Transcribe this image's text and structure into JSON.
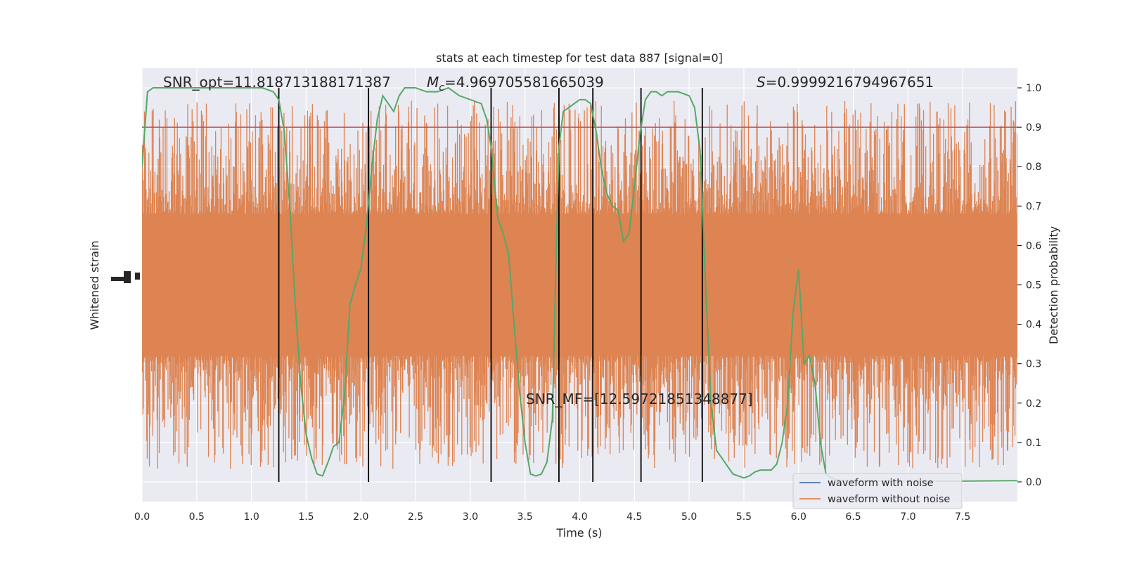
{
  "chart_data": {
    "type": "line",
    "title": "stats at each timestep for test data 887 [signal=0]",
    "xlabel": "Time (s)",
    "ylabel_left": "Whitened strain",
    "ylabel_right": "Detection probability",
    "xlim": [
      0.0,
      8.0
    ],
    "ylim_right": [
      -0.05,
      1.05
    ],
    "grid": true,
    "xticks": [
      "0.0",
      "0.5",
      "1.0",
      "1.5",
      "2.0",
      "2.5",
      "3.0",
      "3.5",
      "4.0",
      "4.5",
      "5.0",
      "5.5",
      "6.0",
      "6.5",
      "7.0",
      "7.5"
    ],
    "yticks_right": [
      "0.0",
      "0.1",
      "0.2",
      "0.3",
      "0.4",
      "0.5",
      "0.6",
      "0.7",
      "0.8",
      "0.9",
      "1.0"
    ],
    "annotations": {
      "snr_opt": "SNR_opt=11.818713188171387",
      "mc_symbol": "M",
      "mc_sub": "c",
      "mc_value": "=4.969705581665039",
      "s_symbol": "S",
      "s_value": "=0.9999216794967651",
      "snr_mf": "SNR_MF=[12.59721851348877]"
    },
    "threshold": 0.9,
    "vertical_lines": [
      1.25,
      2.07,
      3.19,
      3.81,
      4.12,
      4.56,
      5.12
    ],
    "series": [
      {
        "name": "waveform with noise",
        "color": "#4c72b0"
      },
      {
        "name": "waveform without noise",
        "color": "#dd8452",
        "noise_band": {
          "center": 0.5,
          "core_half_width": 0.18,
          "max_half_width": 0.5
        }
      }
    ],
    "detection_probability": {
      "color": "#55a868",
      "x": [
        0.0,
        0.05,
        0.1,
        0.3,
        0.6,
        0.9,
        1.1,
        1.2,
        1.25,
        1.3,
        1.35,
        1.4,
        1.45,
        1.5,
        1.55,
        1.6,
        1.65,
        1.7,
        1.75,
        1.8,
        1.85,
        1.9,
        1.95,
        2.0,
        2.05,
        2.1,
        2.15,
        2.2,
        2.25,
        2.3,
        2.35,
        2.4,
        2.45,
        2.5,
        2.6,
        2.7,
        2.8,
        2.9,
        3.0,
        3.1,
        3.15,
        3.19,
        3.25,
        3.3,
        3.35,
        3.4,
        3.45,
        3.5,
        3.55,
        3.6,
        3.65,
        3.7,
        3.75,
        3.78,
        3.81,
        3.85,
        3.9,
        3.95,
        4.0,
        4.05,
        4.1,
        4.15,
        4.2,
        4.25,
        4.3,
        4.35,
        4.4,
        4.45,
        4.5,
        4.55,
        4.6,
        4.65,
        4.7,
        4.75,
        4.8,
        4.9,
        5.0,
        5.05,
        5.1,
        5.15,
        5.2,
        5.25,
        5.3,
        5.35,
        5.4,
        5.45,
        5.5,
        5.55,
        5.6,
        5.65,
        5.7,
        5.75,
        5.8,
        5.85,
        5.9,
        5.95,
        6.0,
        6.05,
        6.1,
        6.15,
        6.2,
        6.25,
        6.3,
        6.35,
        6.4,
        6.45,
        6.5,
        6.55,
        6.6,
        7.0,
        7.5,
        8.0
      ],
      "y": [
        0.8,
        0.99,
        1.0,
        1.0,
        1.0,
        1.0,
        1.0,
        0.99,
        0.97,
        0.89,
        0.7,
        0.45,
        0.25,
        0.12,
        0.06,
        0.02,
        0.015,
        0.05,
        0.09,
        0.1,
        0.22,
        0.45,
        0.5,
        0.54,
        0.65,
        0.8,
        0.92,
        0.98,
        0.96,
        0.94,
        0.98,
        1.0,
        1.0,
        1.0,
        0.99,
        0.99,
        1.0,
        0.98,
        0.97,
        0.96,
        0.92,
        0.85,
        0.67,
        0.63,
        0.58,
        0.4,
        0.23,
        0.1,
        0.02,
        0.015,
        0.02,
        0.05,
        0.16,
        0.52,
        0.85,
        0.94,
        0.95,
        0.96,
        0.97,
        0.97,
        0.96,
        0.89,
        0.79,
        0.73,
        0.7,
        0.69,
        0.61,
        0.63,
        0.75,
        0.88,
        0.97,
        0.99,
        0.99,
        0.98,
        0.99,
        0.99,
        0.98,
        0.95,
        0.84,
        0.5,
        0.2,
        0.08,
        0.06,
        0.04,
        0.02,
        0.015,
        0.01,
        0.015,
        0.025,
        0.03,
        0.03,
        0.03,
        0.045,
        0.1,
        0.2,
        0.43,
        0.54,
        0.3,
        0.32,
        0.25,
        0.1,
        0.02,
        0.01,
        0.005,
        0.003,
        0.003,
        0.003,
        0.002,
        0.003,
        0.002,
        0.002,
        0.003
      ]
    },
    "legend": {
      "placement": "lower-right",
      "entries": [
        "waveform with noise",
        "waveform without noise"
      ]
    },
    "colors": {
      "plot_bg": "#eaeaf2",
      "grid": "#ffffff",
      "threshold": "#c44e52",
      "vline": "#000000"
    }
  }
}
